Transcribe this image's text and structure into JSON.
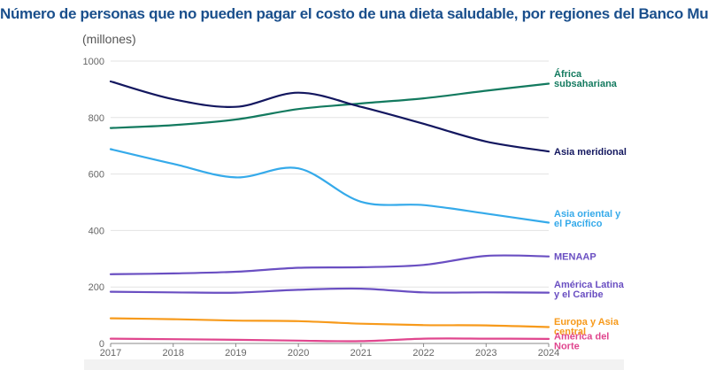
{
  "title": "Número de personas que no pueden pagar el costo de una dieta saludable, por regiones del Banco Mundial",
  "chart_data": {
    "type": "line",
    "title": "Número de personas que no pueden pagar el costo de una dieta saludable, por regiones del Banco Mundial",
    "ylabel": "(millones)",
    "xlabel": "",
    "x": [
      2017,
      2018,
      2019,
      2020,
      2021,
      2022,
      2023,
      2024
    ],
    "xtick_labels": [
      "2017",
      "2018",
      "2019",
      "2020",
      "2021",
      "2022",
      "2023",
      "2024"
    ],
    "ylim": [
      0,
      1000
    ],
    "yticks": [
      0,
      200,
      400,
      600,
      800,
      1000
    ],
    "ytick_labels": [
      "0",
      "200",
      "400",
      "600",
      "800",
      "1000"
    ],
    "grid": "horizontal",
    "legend": "direct labels at right end of lines",
    "series": [
      {
        "name_lines": [
          "África",
          "subsahariana"
        ],
        "color": "#137a5f",
        "values": [
          763,
          773,
          793,
          830,
          850,
          868,
          895,
          920
        ]
      },
      {
        "name_lines": [
          "Asia meridional"
        ],
        "color": "#13175f",
        "values": [
          928,
          865,
          838,
          888,
          838,
          778,
          715,
          680
        ]
      },
      {
        "name_lines": [
          "Asia oriental y",
          "el Pacífico"
        ],
        "color": "#35aaea",
        "values": [
          688,
          636,
          588,
          620,
          502,
          490,
          460,
          428
        ]
      },
      {
        "name_lines": [
          "MENAAP"
        ],
        "color": "#6a4fc2",
        "values": [
          245,
          248,
          254,
          268,
          270,
          278,
          310,
          308
        ]
      },
      {
        "name_lines": [
          "América Latina",
          "y el Caribe"
        ],
        "color": "#6a4fc2",
        "values": [
          183,
          181,
          180,
          190,
          194,
          181,
          181,
          180
        ]
      },
      {
        "name_lines": [
          "Europa y Asia",
          "central"
        ],
        "color": "#f79a1b",
        "values": [
          89,
          86,
          81,
          79,
          70,
          65,
          64,
          58
        ]
      },
      {
        "name_lines": [
          "América del",
          "Norte"
        ],
        "color": "#e0468e",
        "values": [
          17,
          15,
          13,
          10,
          8,
          17,
          17,
          16
        ]
      }
    ]
  }
}
